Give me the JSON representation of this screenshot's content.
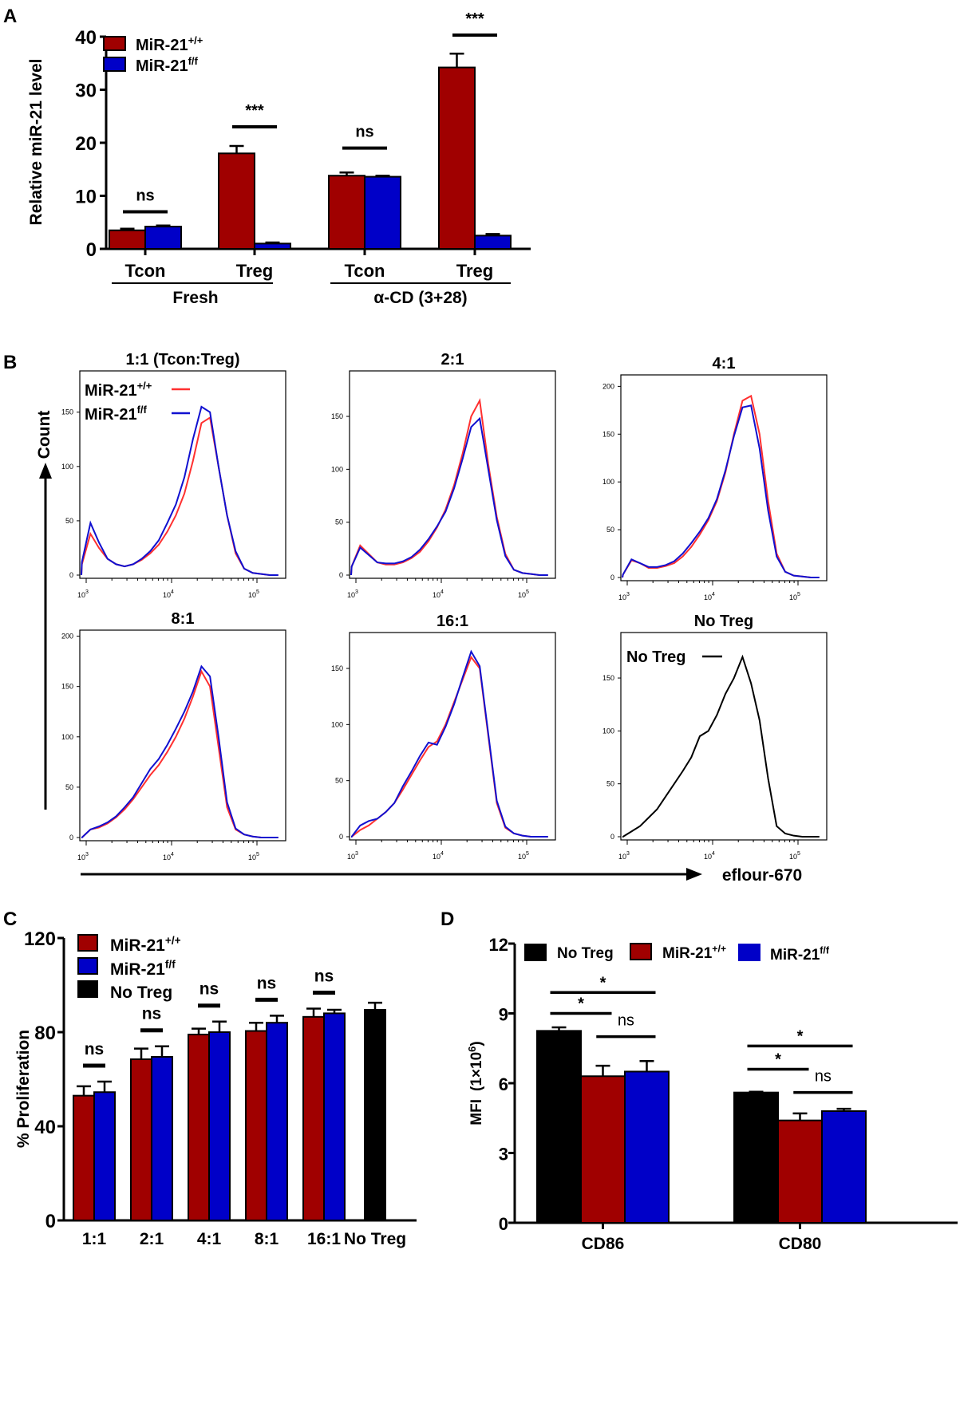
{
  "colors": {
    "wt": "#a00000",
    "ko": "#0000c8",
    "notreg": "#000000",
    "wt_line": "#ff3030",
    "ko_line": "#1010d0"
  },
  "legend": {
    "wt": {
      "base": "MiR-21",
      "sup": "+/+"
    },
    "ko": {
      "base": "MiR-21",
      "sup": "f/f"
    },
    "notreg": "No Treg"
  },
  "chart_data": [
    {
      "panel": "A",
      "type": "bar",
      "ylabel": "Relative miR-21 level",
      "ylim": [
        0,
        40
      ],
      "yticks": [
        "0",
        "10",
        "20",
        "30",
        "40"
      ],
      "categories": [
        "Tcon",
        "Treg",
        "Tcon",
        "Treg"
      ],
      "groups": [
        "Fresh",
        "α-CD (3+28)"
      ],
      "series": [
        {
          "name": "MiR-21+/+",
          "values": [
            3.5,
            18.0,
            13.8,
            34.2
          ],
          "err": [
            0.3,
            1.4,
            0.6,
            2.6
          ]
        },
        {
          "name": "MiR-21f/f",
          "values": [
            4.2,
            1.0,
            13.6,
            2.5
          ],
          "err": [
            0.2,
            0.2,
            0.2,
            0.3
          ]
        }
      ],
      "significance": [
        {
          "label": "ns",
          "level": 7
        },
        {
          "label": "***",
          "level": 23
        },
        {
          "label": "ns",
          "level": 19
        },
        {
          "label": "***",
          "level": 40.3
        }
      ]
    },
    {
      "panel": "B",
      "type": "line",
      "ylabel": "Count",
      "xlabel": "eflour-670",
      "xticks": [
        {
          "base": "10",
          "exp": "3"
        },
        {
          "base": "10",
          "exp": "4"
        },
        {
          "base": "10",
          "exp": "5"
        }
      ],
      "log10_start": 2.95,
      "log10_step": 0.1,
      "plots": [
        {
          "title": "1:1 (Tcon:Treg)",
          "ylim": [
            0,
            188
          ],
          "yticks": [
            "0",
            "50",
            "100",
            "150"
          ],
          "series": [
            {
              "name": "MiR-21+/+",
              "values": [
                10,
                38,
                25,
                15,
                10,
                8,
                10,
                14,
                20,
                28,
                40,
                55,
                75,
                105,
                140,
                145,
                100,
                55,
                20,
                6,
                2,
                1,
                0,
                0
              ]
            },
            {
              "name": "MiR-21f/f",
              "values": [
                12,
                48,
                30,
                15,
                10,
                8,
                10,
                15,
                22,
                32,
                48,
                65,
                90,
                125,
                155,
                150,
                100,
                55,
                22,
                6,
                2,
                1,
                0,
                0
              ]
            }
          ]
        },
        {
          "title": "2:1",
          "ylim": [
            0,
            193
          ],
          "yticks": [
            "0",
            "50",
            "100",
            "150"
          ],
          "series": [
            {
              "name": "MiR-21+/+",
              "values": [
                8,
                28,
                20,
                12,
                10,
                10,
                12,
                16,
                22,
                32,
                45,
                62,
                85,
                115,
                150,
                165,
                105,
                55,
                20,
                5,
                2,
                1,
                0,
                0
              ]
            },
            {
              "name": "MiR-21f/f",
              "values": [
                8,
                26,
                19,
                12,
                11,
                11,
                13,
                17,
                24,
                34,
                46,
                60,
                82,
                110,
                140,
                148,
                100,
                52,
                18,
                5,
                2,
                1,
                0,
                0
              ]
            }
          ]
        },
        {
          "title": "4:1",
          "ylim": [
            0,
            212
          ],
          "yticks": [
            "0",
            "50",
            "100",
            "150",
            "200"
          ],
          "series": [
            {
              "name": "MiR-21+/+",
              "values": [
                3,
                18,
                15,
                10,
                10,
                12,
                15,
                22,
                32,
                45,
                60,
                80,
                110,
                150,
                185,
                190,
                150,
                80,
                25,
                6,
                2,
                1,
                0,
                0
              ]
            },
            {
              "name": "MiR-21f/f",
              "values": [
                3,
                19,
                15,
                11,
                11,
                13,
                17,
                25,
                36,
                48,
                62,
                82,
                112,
                148,
                178,
                180,
                135,
                70,
                22,
                6,
                2,
                1,
                0,
                0
              ]
            }
          ]
        },
        {
          "title": "8:1",
          "ylim": [
            0,
            206
          ],
          "yticks": [
            "0",
            "50",
            "100",
            "150",
            "200"
          ],
          "series": [
            {
              "name": "MiR-21+/+",
              "values": [
                0,
                8,
                10,
                14,
                20,
                28,
                38,
                50,
                62,
                72,
                85,
                100,
                118,
                140,
                165,
                150,
                90,
                30,
                8,
                3,
                1,
                0,
                0,
                0
              ]
            },
            {
              "name": "MiR-21f/f",
              "values": [
                0,
                8,
                11,
                15,
                21,
                30,
                40,
                54,
                68,
                78,
                92,
                108,
                125,
                145,
                170,
                160,
                100,
                35,
                9,
                3,
                1,
                0,
                0,
                0
              ]
            }
          ]
        },
        {
          "title": "16:1",
          "ylim": [
            0,
            182
          ],
          "yticks": [
            "0",
            "50",
            "100",
            "150"
          ],
          "series": [
            {
              "name": "MiR-21+/+",
              "values": [
                0,
                6,
                10,
                16,
                22,
                30,
                42,
                55,
                68,
                80,
                85,
                100,
                120,
                140,
                160,
                150,
                90,
                30,
                8,
                3,
                1,
                0,
                0,
                0
              ]
            },
            {
              "name": "MiR-21f/f",
              "values": [
                0,
                10,
                14,
                16,
                22,
                30,
                45,
                58,
                72,
                84,
                82,
                98,
                118,
                142,
                165,
                152,
                92,
                32,
                9,
                3,
                1,
                0,
                0,
                0
              ]
            }
          ]
        },
        {
          "title": "No Treg",
          "ylim": [
            0,
            193
          ],
          "yticks": [
            "0",
            "50",
            "100",
            "150"
          ],
          "legend": "No Treg",
          "series": [
            {
              "name": "No Treg",
              "values": [
                0,
                5,
                10,
                18,
                26,
                38,
                50,
                62,
                75,
                95,
                100,
                115,
                135,
                150,
                170,
                145,
                110,
                55,
                10,
                3,
                1,
                0,
                0,
                0
              ]
            }
          ]
        }
      ]
    },
    {
      "panel": "C",
      "type": "bar",
      "ylabel": "% Proliferation",
      "ylim": [
        0,
        120
      ],
      "yticks": [
        "0",
        "40",
        "80",
        "120"
      ],
      "categories": [
        "1:1",
        "2:1",
        "4:1",
        "8:1",
        "16:1",
        "No Treg"
      ],
      "series": [
        {
          "name": "MiR-21+/+",
          "values": [
            53,
            68.5,
            79,
            80.5,
            86.5,
            null
          ],
          "err": [
            4,
            4.5,
            2.5,
            3.5,
            3.5,
            null
          ]
        },
        {
          "name": "MiR-21f/f",
          "values": [
            54.5,
            69.5,
            80,
            84,
            88,
            null
          ],
          "err": [
            4.5,
            4.5,
            4.5,
            3,
            1.5,
            null
          ]
        },
        {
          "name": "No Treg",
          "values": [
            null,
            null,
            null,
            null,
            null,
            89.5
          ],
          "err": [
            null,
            null,
            null,
            null,
            null,
            3
          ]
        }
      ],
      "significance": [
        "ns",
        "ns",
        "ns",
        "ns",
        "ns"
      ]
    },
    {
      "panel": "D",
      "type": "bar",
      "ylabel": "MFI",
      "ylabel_unit": {
        "base": "(1×10",
        "sup": "6",
        "end": ")"
      },
      "ylim": [
        0,
        12
      ],
      "yticks": [
        "0",
        "3",
        "6",
        "9",
        "12"
      ],
      "categories": [
        "CD86",
        "CD80"
      ],
      "series": [
        {
          "name": "No Treg",
          "values": [
            8.25,
            5.6
          ],
          "err": [
            0.15,
            0.03
          ]
        },
        {
          "name": "MiR-21+/+",
          "values": [
            6.3,
            4.4
          ],
          "err": [
            0.45,
            0.3
          ]
        },
        {
          "name": "MiR-21f/f",
          "values": [
            6.5,
            4.8
          ],
          "err": [
            0.45,
            0.1
          ]
        }
      ],
      "significance": [
        [
          {
            "label": "*",
            "from": 0,
            "to": 1,
            "level": 9.0
          },
          {
            "label": "*",
            "from": 0,
            "to": 2,
            "level": 9.9
          },
          {
            "label": "ns",
            "from": 1,
            "to": 2,
            "level": 8.0
          }
        ],
        [
          {
            "label": "*",
            "from": 0,
            "to": 1,
            "level": 6.6
          },
          {
            "label": "*",
            "from": 0,
            "to": 2,
            "level": 7.6
          },
          {
            "label": "ns",
            "from": 1,
            "to": 2,
            "level": 5.6
          }
        ]
      ]
    }
  ],
  "panel_labels": [
    "A",
    "B",
    "C",
    "D"
  ]
}
